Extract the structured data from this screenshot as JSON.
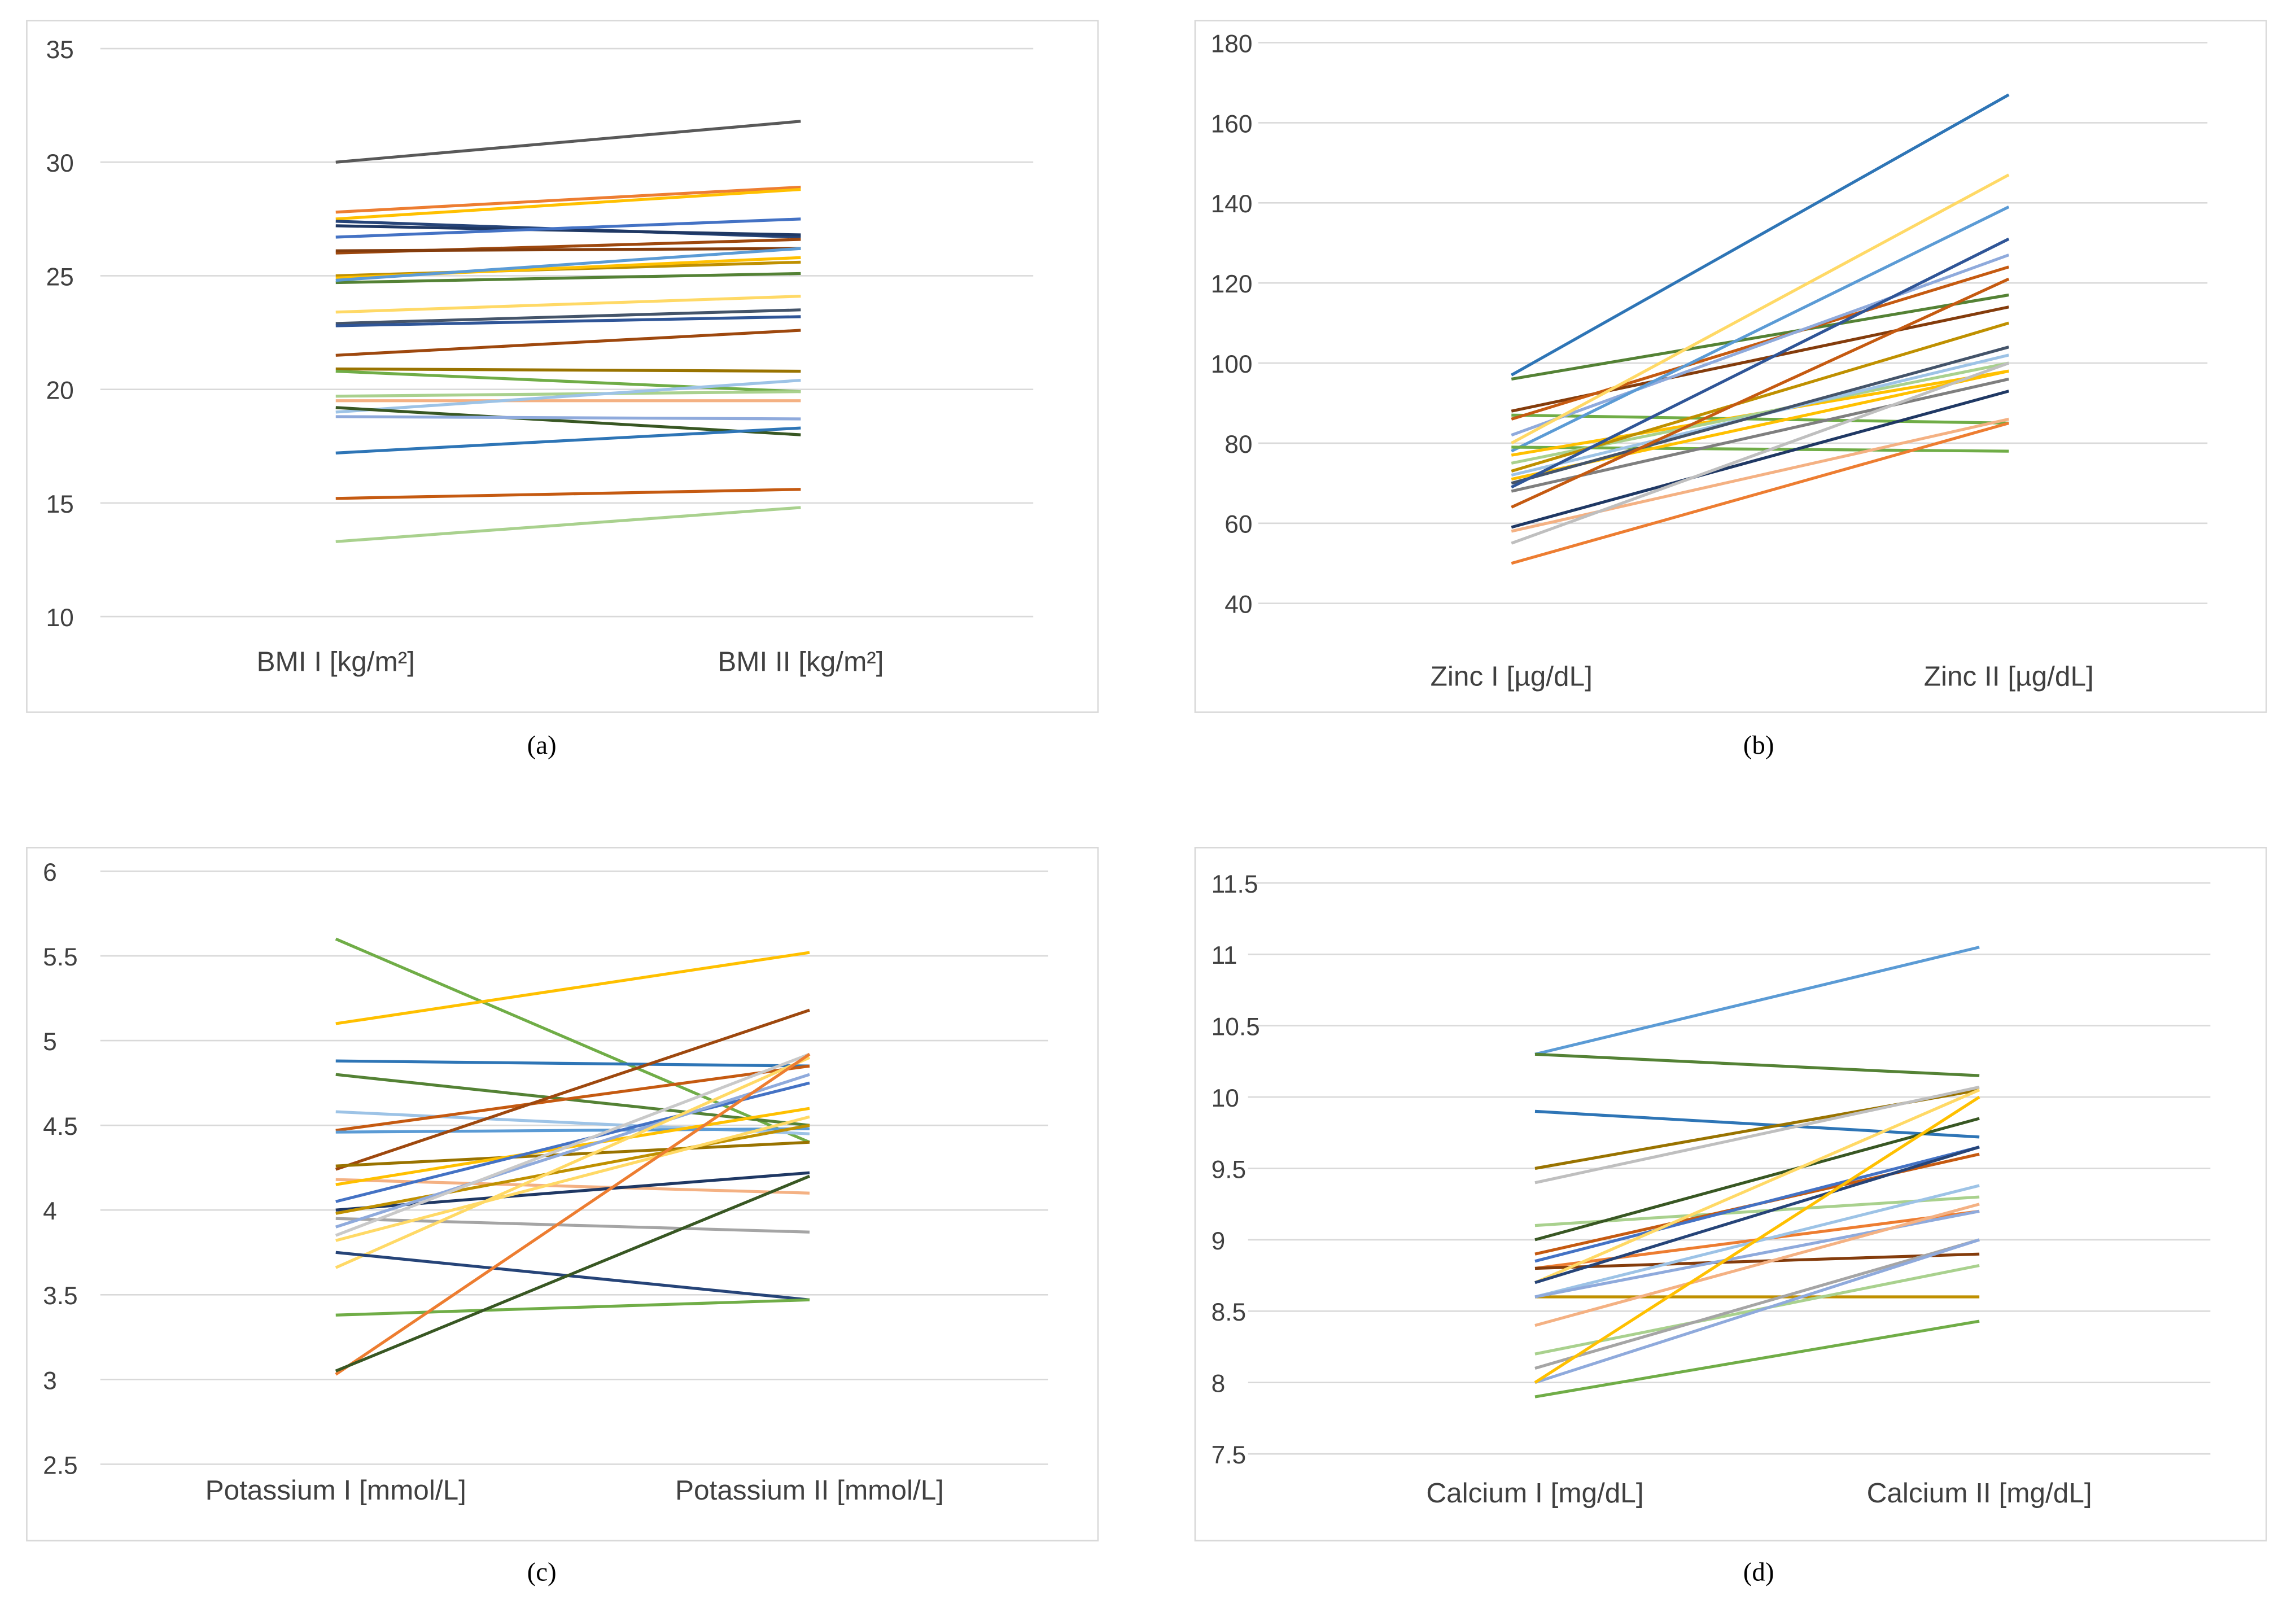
{
  "chart_data": [
    {
      "type": "line",
      "caption": "(a)",
      "categories": [
        "BMI I [kg/m²]",
        "BMI II [kg/m²]"
      ],
      "ylim": [
        10,
        35
      ],
      "yticks": [
        10,
        15,
        20,
        25,
        30,
        35
      ],
      "grid": true,
      "series": [
        {
          "color": "#595959",
          "values": [
            30,
            31.8
          ]
        },
        {
          "color": "#ed7d31",
          "values": [
            27.8,
            28.9
          ]
        },
        {
          "color": "#ffc000",
          "values": [
            27.5,
            28.8
          ]
        },
        {
          "color": "#264478",
          "values": [
            27.4,
            26.7
          ]
        },
        {
          "color": "#1f3864",
          "values": [
            27.2,
            26.8
          ]
        },
        {
          "color": "#4472c4",
          "values": [
            26.7,
            27.5
          ]
        },
        {
          "color": "#9e480e",
          "values": [
            26,
            26.6
          ]
        },
        {
          "color": "#843c0c",
          "values": [
            26.1,
            26.2
          ]
        },
        {
          "color": "#bf9000",
          "values": [
            25,
            25.6
          ]
        },
        {
          "color": "#ffc000",
          "values": [
            24.9,
            25.8
          ]
        },
        {
          "color": "#548235",
          "values": [
            24.7,
            25.1
          ]
        },
        {
          "color": "#5b9bd5",
          "values": [
            24.8,
            26.2
          ]
        },
        {
          "color": "#ffd966",
          "values": [
            23.4,
            24.1
          ]
        },
        {
          "color": "#44546a",
          "values": [
            22.9,
            23.5
          ]
        },
        {
          "color": "#2f5597",
          "values": [
            22.8,
            23.2
          ]
        },
        {
          "color": "#9e480e",
          "values": [
            21.5,
            22.6
          ]
        },
        {
          "color": "#997300",
          "values": [
            20.9,
            20.8
          ]
        },
        {
          "color": "#70ad47",
          "values": [
            20.8,
            19.9
          ]
        },
        {
          "color": "#a9d18e",
          "values": [
            19.7,
            19.9
          ]
        },
        {
          "color": "#f4b183",
          "values": [
            19.5,
            19.5
          ]
        },
        {
          "color": "#9dc3e6",
          "values": [
            19,
            20.4
          ]
        },
        {
          "color": "#385723",
          "values": [
            19.2,
            18
          ]
        },
        {
          "color": "#8faadc",
          "values": [
            18.8,
            18.7
          ]
        },
        {
          "color": "#2e75b6",
          "values": [
            17.2,
            18.3
          ]
        },
        {
          "color": "#c55a11",
          "values": [
            15.2,
            15.6
          ]
        },
        {
          "color": "#a9d18e",
          "values": [
            13.3,
            14.8
          ]
        }
      ]
    },
    {
      "type": "line",
      "caption": "(b)",
      "categories": [
        "Zinc I [µg/dL]",
        "Zinc II [µg/dL]"
      ],
      "ylim": [
        40,
        180
      ],
      "yticks": [
        40,
        60,
        80,
        100,
        120,
        140,
        160,
        180
      ],
      "grid": true,
      "series": [
        {
          "color": "#2e75b6",
          "values": [
            97,
            167
          ]
        },
        {
          "color": "#548235",
          "values": [
            96,
            117
          ]
        },
        {
          "color": "#843c0c",
          "values": [
            88,
            114
          ]
        },
        {
          "color": "#70ad47",
          "values": [
            87,
            85
          ]
        },
        {
          "color": "#c55a11",
          "values": [
            86,
            124
          ]
        },
        {
          "color": "#8faadc",
          "values": [
            82,
            127
          ]
        },
        {
          "color": "#ffd966",
          "values": [
            80,
            147
          ]
        },
        {
          "color": "#5b9bd5",
          "values": [
            78,
            139
          ]
        },
        {
          "color": "#70ad47",
          "values": [
            79,
            78
          ]
        },
        {
          "color": "#ffc000",
          "values": [
            77,
            98
          ]
        },
        {
          "color": "#a9d18e",
          "values": [
            75,
            100
          ]
        },
        {
          "color": "#bf9000",
          "values": [
            73,
            110
          ]
        },
        {
          "color": "#9dc3e6",
          "values": [
            72,
            102
          ]
        },
        {
          "color": "#ffc000",
          "values": [
            71,
            98
          ]
        },
        {
          "color": "#44546a",
          "values": [
            70,
            104
          ]
        },
        {
          "color": "#2f5597",
          "values": [
            69,
            131
          ]
        },
        {
          "color": "#7f7f7f",
          "values": [
            68,
            96
          ]
        },
        {
          "color": "#c55a11",
          "values": [
            64,
            121
          ]
        },
        {
          "color": "#1f3864",
          "values": [
            59,
            93
          ]
        },
        {
          "color": "#f4b183",
          "values": [
            58,
            86
          ]
        },
        {
          "color": "#bfbfbf",
          "values": [
            55,
            100
          ]
        },
        {
          "color": "#ed7d31",
          "values": [
            50,
            85
          ]
        }
      ]
    },
    {
      "type": "line",
      "caption": "(c)",
      "categories": [
        "Potassium I [mmol/L]",
        "Potassium II [mmol/L]"
      ],
      "ylim": [
        2.5,
        6
      ],
      "yticks": [
        2.5,
        3,
        3.5,
        4,
        4.5,
        5,
        5.5,
        6
      ],
      "grid": true,
      "series": [
        {
          "color": "#70ad47",
          "values": [
            5.6,
            4.4
          ]
        },
        {
          "color": "#ffc000",
          "values": [
            5.1,
            5.52
          ]
        },
        {
          "color": "#2e75b6",
          "values": [
            4.88,
            4.85
          ]
        },
        {
          "color": "#548235",
          "values": [
            4.8,
            4.5
          ]
        },
        {
          "color": "#9dc3e6",
          "values": [
            4.58,
            4.45
          ]
        },
        {
          "color": "#c55a11",
          "values": [
            4.47,
            4.85
          ]
        },
        {
          "color": "#5b9bd5",
          "values": [
            4.46,
            4.48
          ]
        },
        {
          "color": "#9e480e",
          "values": [
            4.24,
            5.18
          ]
        },
        {
          "color": "#997300",
          "values": [
            4.26,
            4.4
          ]
        },
        {
          "color": "#f4b183",
          "values": [
            4.18,
            4.1
          ]
        },
        {
          "color": "#ffc000",
          "values": [
            4.15,
            4.6
          ]
        },
        {
          "color": "#4472c4",
          "values": [
            4.05,
            4.75
          ]
        },
        {
          "color": "#1f3864",
          "values": [
            4,
            4.22
          ]
        },
        {
          "color": "#bf9000",
          "values": [
            3.98,
            4.5
          ]
        },
        {
          "color": "#a5a5a5",
          "values": [
            3.95,
            3.87
          ]
        },
        {
          "color": "#8faadc",
          "values": [
            3.9,
            4.8
          ]
        },
        {
          "color": "#c9c9c9",
          "values": [
            3.85,
            4.92
          ]
        },
        {
          "color": "#ffd966",
          "values": [
            3.82,
            4.55
          ]
        },
        {
          "color": "#ffd966",
          "values": [
            3.66,
            4.9
          ]
        },
        {
          "color": "#264478",
          "values": [
            3.75,
            3.47
          ]
        },
        {
          "color": "#70ad47",
          "values": [
            3.38,
            3.47
          ]
        },
        {
          "color": "#ed7d31",
          "values": [
            3.03,
            4.92
          ]
        },
        {
          "color": "#385723",
          "values": [
            3.05,
            4.2
          ]
        }
      ]
    },
    {
      "type": "line",
      "caption": "(d)",
      "categories": [
        "Calcium I [mg/dL]",
        "Calcium II [mg/dL]"
      ],
      "ylim": [
        7.5,
        11.5
      ],
      "yticks": [
        7.5,
        8,
        8.5,
        9,
        9.5,
        10,
        10.5,
        11,
        11.5
      ],
      "grid": true,
      "series": [
        {
          "color": "#5b9bd5",
          "values": [
            10.3,
            11.05
          ]
        },
        {
          "color": "#548235",
          "values": [
            10.3,
            10.15
          ]
        },
        {
          "color": "#2e75b6",
          "values": [
            9.9,
            9.72
          ]
        },
        {
          "color": "#997300",
          "values": [
            9.5,
            10.05
          ]
        },
        {
          "color": "#bfbfbf",
          "values": [
            9.4,
            10.07
          ]
        },
        {
          "color": "#a9d18e",
          "values": [
            9.1,
            9.3
          ]
        },
        {
          "color": "#385723",
          "values": [
            9,
            9.85
          ]
        },
        {
          "color": "#c55a11",
          "values": [
            8.9,
            9.6
          ]
        },
        {
          "color": "#4472c4",
          "values": [
            8.85,
            9.65
          ]
        },
        {
          "color": "#ed7d31",
          "values": [
            8.8,
            9.2
          ]
        },
        {
          "color": "#843c0c",
          "values": [
            8.8,
            8.9
          ]
        },
        {
          "color": "#ffd966",
          "values": [
            8.7,
            10.05
          ]
        },
        {
          "color": "#264478",
          "values": [
            8.7,
            9.65
          ]
        },
        {
          "color": "#bf9000",
          "values": [
            8.6,
            8.6
          ]
        },
        {
          "color": "#9dc3e6",
          "values": [
            8.6,
            9.38
          ]
        },
        {
          "color": "#8faadc",
          "values": [
            8.6,
            9.2
          ]
        },
        {
          "color": "#f4b183",
          "values": [
            8.4,
            9.25
          ]
        },
        {
          "color": "#a9d18e",
          "values": [
            8.2,
            8.82
          ]
        },
        {
          "color": "#a5a5a5",
          "values": [
            8.1,
            9
          ]
        },
        {
          "color": "#8faadc",
          "values": [
            8,
            9
          ]
        },
        {
          "color": "#ffc000",
          "values": [
            8,
            10
          ]
        },
        {
          "color": "#70ad47",
          "values": [
            7.9,
            8.43
          ]
        }
      ]
    }
  ]
}
